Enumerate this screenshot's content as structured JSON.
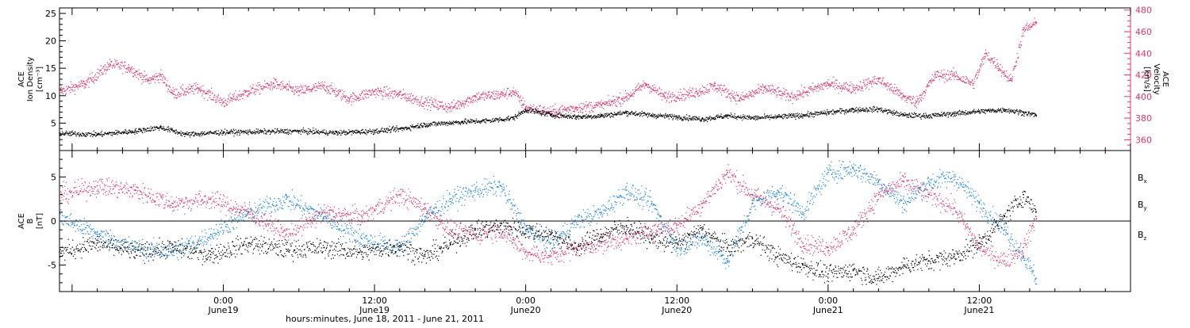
{
  "colors": {
    "black": "#000000",
    "pink": "#e0356a",
    "blue": "#1a84e0"
  },
  "x_axis": {
    "caption": "hours:minutes, June 18, 2011 - June 21, 2011",
    "ticks": [
      {
        "time": "0:00",
        "date": "June19",
        "hours": 24
      },
      {
        "time": "12:00",
        "date": "June19",
        "hours": 36
      },
      {
        "time": "0:00",
        "date": "June20",
        "hours": 48
      },
      {
        "time": "12:00",
        "date": "June20",
        "hours": 60
      },
      {
        "time": "0:00",
        "date": "June21",
        "hours": 72
      },
      {
        "time": "12:00",
        "date": "June21",
        "hours": 84
      }
    ]
  },
  "chart_data": [
    {
      "type": "scatter",
      "panel": "top",
      "ylabel_left": [
        "ACE",
        "Ion Density",
        "[cm⁻³]"
      ],
      "ylabel_right": [
        "ACE",
        "Velocity",
        "[km/s]"
      ],
      "xlim_hours_from_June18_0000": [
        11,
        96
      ],
      "ylim_left": [
        0,
        26
      ],
      "yticks_left": [
        5,
        10,
        15,
        20,
        25
      ],
      "ylim_right": [
        350,
        482
      ],
      "yticks_right": [
        360,
        380,
        400,
        420,
        440,
        460,
        480
      ],
      "data_end_hours": 88.5,
      "series": [
        {
          "axis": "left",
          "color": "black",
          "points": [
            [
              11,
              3.2
            ],
            [
              14,
              3.0
            ],
            [
              17,
              3.6
            ],
            [
              19,
              4.3
            ],
            [
              21,
              3.0
            ],
            [
              24,
              3.4
            ],
            [
              27,
              3.5
            ],
            [
              30,
              3.6
            ],
            [
              33,
              3.3
            ],
            [
              36,
              3.6
            ],
            [
              38,
              4.0
            ],
            [
              40,
              4.8
            ],
            [
              43,
              5.3
            ],
            [
              45,
              5.5
            ],
            [
              47,
              6.0
            ],
            [
              48,
              7.5
            ],
            [
              50,
              6.6
            ],
            [
              52,
              6.2
            ],
            [
              54,
              6.4
            ],
            [
              56,
              7.0
            ],
            [
              58,
              6.5
            ],
            [
              60,
              6.2
            ],
            [
              62,
              5.8
            ],
            [
              64,
              6.4
            ],
            [
              66,
              6.0
            ],
            [
              68,
              6.2
            ],
            [
              70,
              6.5
            ],
            [
              72,
              7.0
            ],
            [
              74,
              7.5
            ],
            [
              76,
              7.6
            ],
            [
              78,
              6.5
            ],
            [
              80,
              6.4
            ],
            [
              82,
              6.8
            ],
            [
              84,
              7.2
            ],
            [
              86,
              7.5
            ],
            [
              87.5,
              7.0
            ],
            [
              88.5,
              6.5
            ]
          ]
        },
        {
          "axis": "right",
          "color": "pink",
          "points": [
            [
              11,
              405
            ],
            [
              13,
              412
            ],
            [
              15,
              430
            ],
            [
              16.5,
              427
            ],
            [
              18,
              415
            ],
            [
              19,
              420
            ],
            [
              20,
              403
            ],
            [
              22,
              408
            ],
            [
              24,
              395
            ],
            [
              26,
              405
            ],
            [
              28,
              412
            ],
            [
              30,
              405
            ],
            [
              32,
              410
            ],
            [
              34,
              398
            ],
            [
              36,
              405
            ],
            [
              38,
              402
            ],
            [
              40,
              395
            ],
            [
              42,
              390
            ],
            [
              44,
              400
            ],
            [
              46,
              402
            ],
            [
              47,
              405
            ],
            [
              48,
              390
            ],
            [
              50,
              386
            ],
            [
              52,
              390
            ],
            [
              54,
              392
            ],
            [
              56,
              400
            ],
            [
              57.5,
              412
            ],
            [
              59,
              400
            ],
            [
              61,
              403
            ],
            [
              63,
              410
            ],
            [
              65,
              398
            ],
            [
              67,
              408
            ],
            [
              69,
              400
            ],
            [
              70,
              404
            ],
            [
              72,
              412
            ],
            [
              74,
              408
            ],
            [
              76,
              416
            ],
            [
              78,
              400
            ],
            [
              79,
              395
            ],
            [
              80.5,
              420
            ],
            [
              82,
              420
            ],
            [
              83.5,
              412
            ],
            [
              84.5,
              440
            ],
            [
              85.5,
              428
            ],
            [
              86.5,
              415
            ],
            [
              87.5,
              462
            ],
            [
              88.5,
              468
            ]
          ]
        }
      ]
    },
    {
      "type": "scatter",
      "panel": "bottom",
      "ylabel_left": [
        "ACE",
        "B",
        "[nT]"
      ],
      "xlim_hours_from_June18_0000": [
        11,
        96
      ],
      "ylim": [
        -8,
        8
      ],
      "yticks": [
        -5,
        0,
        5
      ],
      "zero_line": true,
      "data_end_hours": 88.5,
      "series": [
        {
          "name": "Bₓ",
          "color": "black",
          "points": [
            [
              11,
              -3.5
            ],
            [
              14,
              -2.5
            ],
            [
              17,
              -3.5
            ],
            [
              20,
              -3.0
            ],
            [
              23,
              -3.8
            ],
            [
              26,
              -2.5
            ],
            [
              29,
              -3.2
            ],
            [
              32,
              -3.0
            ],
            [
              35,
              -3.5
            ],
            [
              38,
              -2.8
            ],
            [
              40,
              -4.0
            ],
            [
              42,
              -2.5
            ],
            [
              44,
              -1.0
            ],
            [
              46,
              -0.5
            ],
            [
              48,
              -1.0
            ],
            [
              50,
              -1.5
            ],
            [
              52,
              -3.0
            ],
            [
              54,
              -1.5
            ],
            [
              56,
              -0.5
            ],
            [
              58,
              -2.0
            ],
            [
              60,
              -2.5
            ],
            [
              62,
              -1.0
            ],
            [
              64,
              -3.0
            ],
            [
              66,
              -2.0
            ],
            [
              68,
              -4.0
            ],
            [
              70,
              -5.0
            ],
            [
              72,
              -6.0
            ],
            [
              74,
              -5.5
            ],
            [
              76,
              -6.5
            ],
            [
              78,
              -5.0
            ],
            [
              80,
              -4.5
            ],
            [
              82,
              -4.0
            ],
            [
              84,
              -2.5
            ],
            [
              86,
              0.5
            ],
            [
              87.5,
              3.0
            ],
            [
              88.5,
              1.0
            ]
          ]
        },
        {
          "name": "B_y",
          "color": "blue",
          "points": [
            [
              11,
              0.5
            ],
            [
              14,
              -1.5
            ],
            [
              17,
              -3.0
            ],
            [
              20,
              -3.5
            ],
            [
              23,
              -1.5
            ],
            [
              26,
              1.0
            ],
            [
              29,
              2.5
            ],
            [
              32,
              0.5
            ],
            [
              35,
              -2.0
            ],
            [
              38,
              -3.0
            ],
            [
              40,
              0.5
            ],
            [
              42,
              2.5
            ],
            [
              44,
              3.5
            ],
            [
              46,
              4.0
            ],
            [
              48,
              -1.0
            ],
            [
              50,
              -2.5
            ],
            [
              52,
              0.0
            ],
            [
              54,
              1.0
            ],
            [
              56,
              3.5
            ],
            [
              58,
              2.0
            ],
            [
              60,
              -3.0
            ],
            [
              62,
              -2.0
            ],
            [
              64,
              -4.5
            ],
            [
              66,
              2.0
            ],
            [
              68,
              3.5
            ],
            [
              70,
              1.0
            ],
            [
              72,
              5.5
            ],
            [
              74,
              6.0
            ],
            [
              76,
              4.5
            ],
            [
              78,
              2.0
            ],
            [
              80,
              4.5
            ],
            [
              82,
              5.0
            ],
            [
              84,
              2.0
            ],
            [
              86,
              -1.0
            ],
            [
              87.5,
              -4.0
            ],
            [
              88.5,
              -6.5
            ]
          ]
        },
        {
          "name": "B_z",
          "color": "pink",
          "points": [
            [
              11,
              3.0
            ],
            [
              14,
              4.0
            ],
            [
              17,
              3.5
            ],
            [
              20,
              2.0
            ],
            [
              23,
              2.5
            ],
            [
              26,
              1.0
            ],
            [
              29,
              -1.5
            ],
            [
              32,
              1.0
            ],
            [
              35,
              0.5
            ],
            [
              38,
              3.0
            ],
            [
              40,
              1.5
            ],
            [
              42,
              -1.0
            ],
            [
              44,
              -1.5
            ],
            [
              46,
              -1.0
            ],
            [
              48,
              -3.5
            ],
            [
              50,
              -4.0
            ],
            [
              52,
              -3.0
            ],
            [
              54,
              -2.5
            ],
            [
              56,
              -2.0
            ],
            [
              58,
              -1.0
            ],
            [
              60,
              -0.5
            ],
            [
              62,
              2.0
            ],
            [
              64,
              5.5
            ],
            [
              66,
              3.0
            ],
            [
              68,
              1.5
            ],
            [
              70,
              -2.5
            ],
            [
              72,
              -3.0
            ],
            [
              74,
              -1.0
            ],
            [
              76,
              3.0
            ],
            [
              78,
              4.5
            ],
            [
              80,
              3.0
            ],
            [
              82,
              1.5
            ],
            [
              84,
              -3.0
            ],
            [
              86,
              -4.5
            ],
            [
              87.5,
              -3.0
            ],
            [
              88.5,
              0.5
            ]
          ]
        }
      ],
      "legend": {
        "placement": "right",
        "entries": [
          {
            "base": "B",
            "sub": "x",
            "color": "black"
          },
          {
            "base": "B",
            "sub": "y",
            "color": "blue"
          },
          {
            "base": "B",
            "sub": "z",
            "color": "pink"
          }
        ]
      }
    }
  ]
}
